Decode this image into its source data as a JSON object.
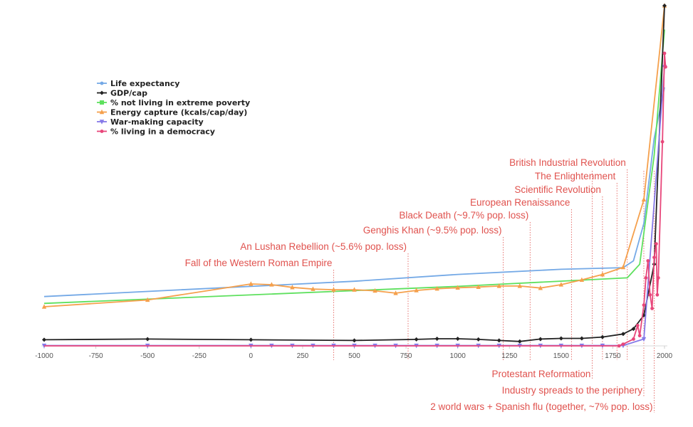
{
  "chart_data": {
    "type": "line",
    "title": "",
    "xlabel": "",
    "ylabel": "",
    "xlim": [
      -1000,
      2010
    ],
    "ylim": [
      0,
      100
    ],
    "grid": false,
    "legend_position": "top-left",
    "x_ticks": [
      -1000,
      -750,
      -500,
      -250,
      0,
      250,
      500,
      750,
      1000,
      1250,
      1500,
      1750,
      2000
    ],
    "series": [
      {
        "name": "Life expectancy",
        "color": "#74a9e6",
        "marker": "none",
        "points": [
          [
            -1000,
            14.5
          ],
          [
            -500,
            16
          ],
          [
            0,
            17.5
          ],
          [
            500,
            19
          ],
          [
            1000,
            21
          ],
          [
            1500,
            22.5
          ],
          [
            1800,
            23
          ],
          [
            1850,
            25
          ],
          [
            1900,
            36
          ],
          [
            1950,
            61
          ],
          [
            2000,
            76
          ]
        ]
      },
      {
        "name": "GDP/cap",
        "color": "#222222",
        "marker": "diamond",
        "points": [
          [
            -1000,
            1.8
          ],
          [
            -500,
            2.0
          ],
          [
            0,
            1.8
          ],
          [
            500,
            1.6
          ],
          [
            800,
            1.9
          ],
          [
            900,
            2.1
          ],
          [
            1000,
            2.1
          ],
          [
            1100,
            1.9
          ],
          [
            1200,
            1.6
          ],
          [
            1300,
            1.3
          ],
          [
            1400,
            2.0
          ],
          [
            1500,
            2.2
          ],
          [
            1600,
            2.2
          ],
          [
            1700,
            2.6
          ],
          [
            1800,
            3.5
          ],
          [
            1850,
            5
          ],
          [
            1900,
            9
          ],
          [
            1950,
            24
          ],
          [
            2000,
            100
          ]
        ]
      },
      {
        "name": "% not living in extreme poverty",
        "color": "#5ee05e",
        "marker": "none",
        "points": [
          [
            -1000,
            12.5
          ],
          [
            1000,
            17.5
          ],
          [
            1820,
            20
          ],
          [
            1880,
            24
          ],
          [
            1950,
            56
          ],
          [
            2000,
            93
          ]
        ]
      },
      {
        "name": "Energy capture (kcals/cap/day)",
        "color": "#f5a04c",
        "marker": "triangle-up",
        "points": [
          [
            -1000,
            11.5
          ],
          [
            -500,
            13.5
          ],
          [
            0,
            18.2
          ],
          [
            100,
            18.0
          ],
          [
            200,
            17.2
          ],
          [
            300,
            16.7
          ],
          [
            400,
            16.5
          ],
          [
            500,
            16.5
          ],
          [
            600,
            16.2
          ],
          [
            700,
            15.5
          ],
          [
            800,
            16.3
          ],
          [
            900,
            16.8
          ],
          [
            1000,
            17.1
          ],
          [
            1100,
            17.3
          ],
          [
            1200,
            17.6
          ],
          [
            1300,
            17.6
          ],
          [
            1400,
            17.0
          ],
          [
            1500,
            18.0
          ],
          [
            1600,
            19.4
          ],
          [
            1700,
            21.0
          ],
          [
            1800,
            23.1
          ],
          [
            1900,
            43
          ],
          [
            2000,
            100
          ]
        ]
      },
      {
        "name": "War-making capacity",
        "color": "#8579e8",
        "marker": "triangle-down",
        "points": [
          [
            -1000,
            0.1
          ],
          [
            -500,
            0.1
          ],
          [
            0,
            0.1
          ],
          [
            100,
            0.1
          ],
          [
            200,
            0.1
          ],
          [
            300,
            0.1
          ],
          [
            400,
            0.1
          ],
          [
            500,
            0.1
          ],
          [
            600,
            0.1
          ],
          [
            700,
            0.1
          ],
          [
            800,
            0.1
          ],
          [
            900,
            0.1
          ],
          [
            1000,
            0.1
          ],
          [
            1100,
            0.1
          ],
          [
            1200,
            0.1
          ],
          [
            1300,
            0.1
          ],
          [
            1400,
            0.1
          ],
          [
            1500,
            0.1
          ],
          [
            1600,
            0.1
          ],
          [
            1700,
            0.1
          ],
          [
            1800,
            0.1
          ],
          [
            1900,
            2.0
          ],
          [
            2000,
            82
          ]
        ]
      },
      {
        "name": "% living in a democracy",
        "color": "#e8467a",
        "marker": "circle",
        "points": [
          [
            -1000,
            0
          ],
          [
            1780,
            0
          ],
          [
            1800,
            0.5
          ],
          [
            1850,
            2
          ],
          [
            1870,
            6
          ],
          [
            1880,
            3
          ],
          [
            1900,
            12
          ],
          [
            1910,
            20
          ],
          [
            1920,
            25
          ],
          [
            1930,
            15
          ],
          [
            1940,
            11
          ],
          [
            1950,
            26
          ],
          [
            1960,
            30
          ],
          [
            1965,
            15
          ],
          [
            1970,
            20
          ],
          [
            1990,
            60
          ],
          [
            2000,
            86
          ],
          [
            2005,
            82
          ]
        ]
      }
    ],
    "events": [
      {
        "label": "Fall of the Western Roman Empire",
        "year": 400,
        "side": "above",
        "level": 0
      },
      {
        "label": "An Lushan Rebellion (~5.6% pop. loss)",
        "year": 760,
        "side": "above",
        "level": 1
      },
      {
        "label": "Genghis Khan (~9.5% pop. loss)",
        "year": 1220,
        "side": "above",
        "level": 2
      },
      {
        "label": "Black Death (~9.7% pop. loss)",
        "year": 1350,
        "side": "above",
        "level": 3
      },
      {
        "label": "European Renaissance",
        "year": 1550,
        "side": "above",
        "level": 4
      },
      {
        "label": "Scientific Revolution",
        "year": 1700,
        "side": "above",
        "level": 5
      },
      {
        "label": "The Enlightenment",
        "year": 1770,
        "side": "above",
        "level": 6
      },
      {
        "label": "British Industrial Revolution",
        "year": 1820,
        "side": "above",
        "level": 7
      },
      {
        "label": "Protestant Reformation",
        "year": 1650,
        "side": "below",
        "level": 0
      },
      {
        "label": "Industry spreads to the periphery",
        "year": 1900,
        "side": "below",
        "level": 1
      },
      {
        "label": "2 world wars + Spanish flu (together, ~7%  pop. loss)",
        "year": 1950,
        "side": "below",
        "level": 2
      }
    ]
  }
}
